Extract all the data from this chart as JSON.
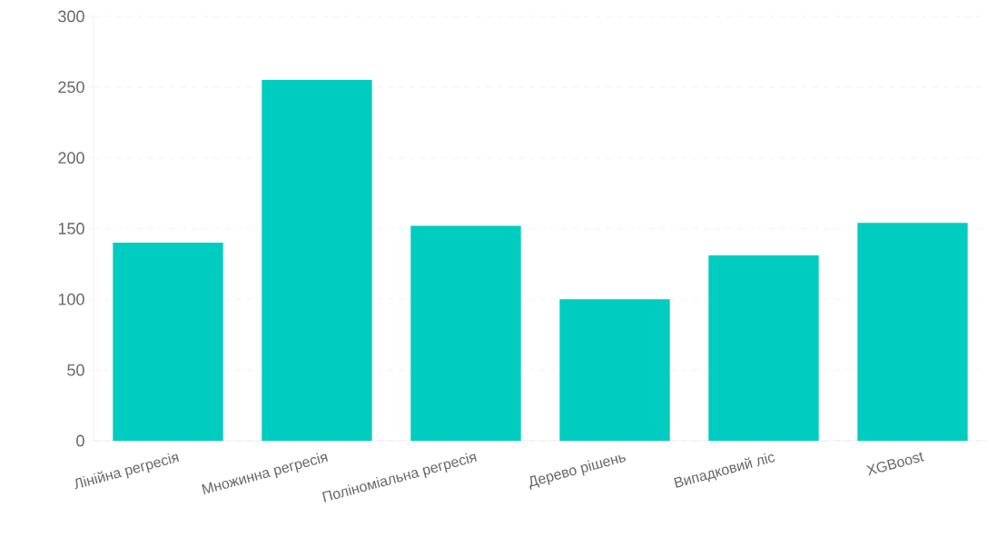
{
  "chart_data": {
    "type": "bar",
    "categories": [
      "Лінійна регресія",
      "Множинна регресія",
      "Поліноміальна регресія",
      "Дерево рішень",
      "Випадковий ліс",
      "XGBoost"
    ],
    "values": [
      140,
      255,
      152,
      100,
      131,
      154
    ],
    "color": "#00ccc0",
    "ylim": [
      0,
      300
    ],
    "yticks": [
      0,
      50,
      100,
      150,
      200,
      250,
      300
    ],
    "grid": "y"
  }
}
